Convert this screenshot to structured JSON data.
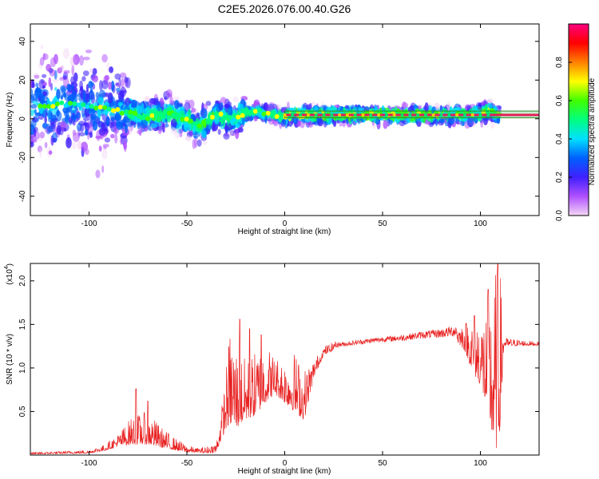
{
  "title": "C2E5.2026.076.00.40.G26",
  "colors": {
    "snr_line": "#e82020",
    "band_edge": "#2a8a2a",
    "band_center": "#e0205a",
    "axis": "#000000"
  },
  "chart_data": [
    {
      "type": "heatmap",
      "name": "spectrogram",
      "xlabel": "Height of straight line (km)",
      "ylabel": "Frequency (Hz)",
      "xlim": [
        -130,
        130
      ],
      "ylim": [
        -50,
        49
      ],
      "xticks": [
        -100,
        -50,
        0,
        50,
        100
      ],
      "yticks": [
        -40,
        -20,
        0,
        20,
        40
      ],
      "xtick_labels": [
        "-100",
        "-50",
        "0",
        "50",
        "100"
      ],
      "ytick_labels": [
        "-40",
        "-20",
        "0",
        "20",
        "40"
      ],
      "colorbar": {
        "label": "Normalized spectral amplitude",
        "range": [
          0,
          1
        ],
        "ticks": [
          0.0,
          0.2,
          0.4,
          0.6,
          0.8
        ],
        "tick_labels": [
          "0.0",
          "0.2",
          "0.4",
          "0.6",
          "0.8"
        ],
        "colormap": [
          "#f4d8f4",
          "#b050ff",
          "#4020ff",
          "#0060ff",
          "#00e0ff",
          "#00ff80",
          "#40ff00",
          "#ffff00",
          "#ff8000",
          "#ff0000",
          "#ff0080"
        ]
      },
      "ridge": {
        "x": [
          -128,
          -110,
          -100,
          -90,
          -80,
          -70,
          -60,
          -50,
          -45,
          -40,
          -35,
          -30,
          -25,
          -20,
          -15,
          -10,
          -5,
          0,
          5,
          10,
          20,
          40,
          60,
          80,
          95,
          100,
          105,
          108
        ],
        "y": [
          6,
          8,
          7,
          5,
          3,
          1,
          3,
          0,
          -4,
          -2,
          2,
          1,
          0,
          3,
          4,
          3,
          2,
          1,
          2,
          2,
          2,
          2,
          2,
          2,
          2,
          3,
          4,
          2
        ]
      },
      "band": {
        "x_start": 0,
        "x_end": 130,
        "y_low": 0.5,
        "y_high": 4,
        "y_center": 2
      }
    },
    {
      "type": "line",
      "name": "snr",
      "xlabel": "Height of straight line (km)",
      "ylabel": "SNR (10 * v/v)",
      "scale_label": "(x10",
      "scale_exponent": "4",
      "xlim": [
        -130,
        130
      ],
      "ylim": [
        0,
        2.2
      ],
      "xticks": [
        -100,
        -50,
        0,
        50,
        100
      ],
      "yticks": [
        0.5,
        1.0,
        1.5,
        2.0
      ],
      "xtick_labels": [
        "-100",
        "-50",
        "0",
        "50",
        "100"
      ],
      "ytick_labels": [
        "0.5",
        "1.0",
        "1.5",
        "2.0"
      ],
      "envelope": {
        "x": [
          -130,
          -100,
          -92,
          -85,
          -78,
          -70,
          -62,
          -55,
          -50,
          -45,
          -40,
          -35,
          -32,
          -30,
          -28,
          -25,
          -20,
          -15,
          -10,
          -5,
          0,
          5,
          10,
          15,
          20,
          25,
          30,
          40,
          50,
          60,
          70,
          80,
          88,
          92,
          96,
          100,
          103,
          106,
          108,
          110,
          112,
          130
        ],
        "lo": [
          0.01,
          0.02,
          0.05,
          0.1,
          0.12,
          0.12,
          0.08,
          0.05,
          0.03,
          0.03,
          0.02,
          0.03,
          0.2,
          0.3,
          0.35,
          0.3,
          0.4,
          0.45,
          0.6,
          0.7,
          0.6,
          0.5,
          0.4,
          0.9,
          1.15,
          1.2,
          1.22,
          1.25,
          1.27,
          1.28,
          1.3,
          1.3,
          1.3,
          1.2,
          0.95,
          0.8,
          0.55,
          0.2,
          0.05,
          0.3,
          1.25,
          1.26
        ],
        "hi": [
          0.03,
          0.06,
          0.12,
          0.25,
          0.45,
          0.5,
          0.3,
          0.18,
          0.12,
          0.08,
          0.1,
          0.15,
          0.6,
          1.0,
          1.45,
          1.3,
          1.1,
          1.2,
          1.3,
          1.15,
          1.1,
          1.2,
          1.0,
          1.1,
          1.25,
          1.3,
          1.3,
          1.33,
          1.36,
          1.38,
          1.42,
          1.45,
          1.5,
          1.55,
          1.6,
          1.65,
          1.7,
          1.9,
          2.2,
          2.2,
          1.35,
          1.3
        ]
      },
      "peaks": [
        {
          "x": -76,
          "y": 0.76
        },
        {
          "x": -70,
          "y": 0.62
        },
        {
          "x": -23,
          "y": 1.56
        },
        {
          "x": -18,
          "y": 1.45
        },
        {
          "x": -12,
          "y": 1.38
        },
        {
          "x": 97,
          "y": 1.6
        },
        {
          "x": 104,
          "y": 1.9
        },
        {
          "x": 109,
          "y": 2.22
        }
      ]
    }
  ]
}
